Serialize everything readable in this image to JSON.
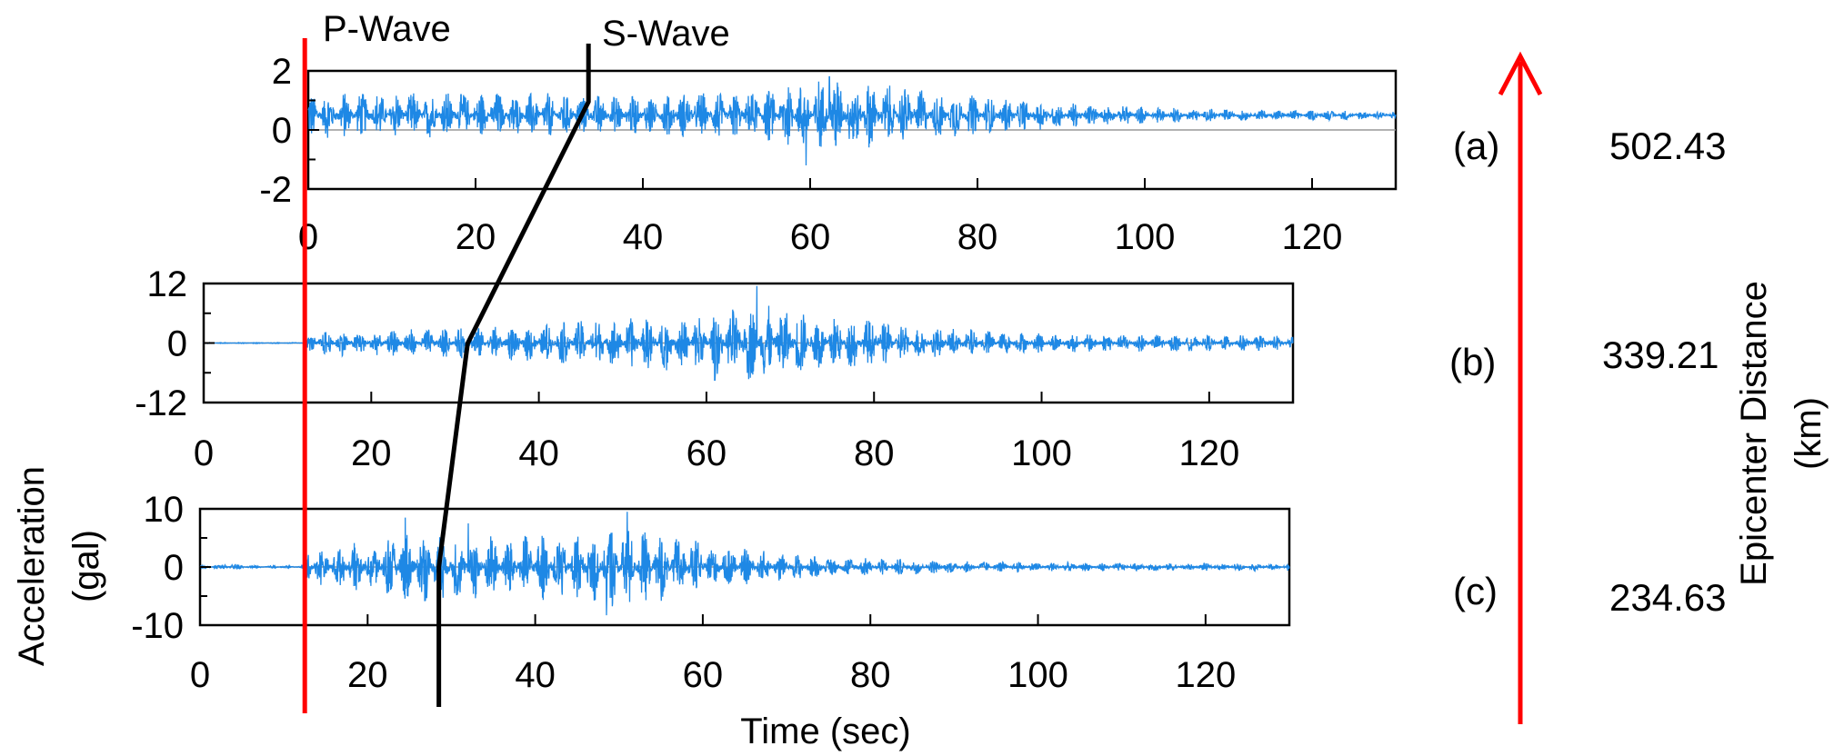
{
  "chart_data": [
    {
      "type": "line",
      "panel_label": "(a)",
      "epicenter_distance": "502.43",
      "xlim": [
        0,
        130
      ],
      "ylim": [
        -2,
        2
      ],
      "xticks": [
        "0",
        "20",
        "40",
        "60",
        "80",
        "100",
        "120"
      ],
      "yticks": [
        "2",
        "0",
        "-2"
      ],
      "xtick_values": [
        0,
        20,
        40,
        60,
        80,
        100,
        120
      ],
      "ytick_values": [
        2,
        0,
        -2
      ],
      "series": [
        {
          "baseline": 0.5,
          "envelope": [
            [
              0,
              0.8
            ],
            [
              20,
              0.8
            ],
            [
              40,
              0.7
            ],
            [
              55,
              0.9
            ],
            [
              62,
              1.4
            ],
            [
              70,
              1.0
            ],
            [
              82,
              0.6
            ],
            [
              95,
              0.35
            ],
            [
              110,
              0.2
            ],
            [
              130,
              0.15
            ]
          ],
          "peaks": [
            [
              59.5,
              -1.2
            ],
            [
              62.3,
              1.8
            ],
            [
              69.5,
              1.5
            ]
          ],
          "color": "#1E88E5"
        }
      ]
    },
    {
      "type": "line",
      "panel_label": "(b)",
      "epicenter_distance": "339.21",
      "xlim": [
        0,
        130
      ],
      "ylim": [
        -12,
        12
      ],
      "xticks": [
        "0",
        "20",
        "40",
        "60",
        "80",
        "100",
        "120"
      ],
      "yticks": [
        "12",
        "0",
        "-12"
      ],
      "xtick_values": [
        0,
        20,
        40,
        60,
        80,
        100,
        120
      ],
      "ytick_values": [
        12,
        0,
        -12
      ],
      "series": [
        {
          "baseline": 0,
          "envelope": [
            [
              0,
              0.1
            ],
            [
              12,
              0.1
            ],
            [
              13,
              2.5
            ],
            [
              30,
              3.0
            ],
            [
              45,
              4.5
            ],
            [
              60,
              6.0
            ],
            [
              66,
              8.0
            ],
            [
              75,
              6.0
            ],
            [
              85,
              3.5
            ],
            [
              100,
              2.0
            ],
            [
              130,
              1.5
            ]
          ],
          "peaks": [
            [
              66,
              11.5
            ],
            [
              61,
              -7.5
            ]
          ],
          "color": "#1E88E5"
        }
      ]
    },
    {
      "type": "line",
      "panel_label": "(c)",
      "epicenter_distance": "234.63",
      "xlim": [
        0,
        130
      ],
      "ylim": [
        -10,
        10
      ],
      "xticks": [
        "0",
        "20",
        "40",
        "60",
        "80",
        "100",
        "120"
      ],
      "yticks": [
        "10",
        "0",
        "-10"
      ],
      "xtick_values": [
        0,
        20,
        40,
        60,
        80,
        100,
        120
      ],
      "ytick_values": [
        10,
        0,
        -10
      ],
      "series": [
        {
          "baseline": 0,
          "envelope": [
            [
              0,
              0.15
            ],
            [
              4,
              0.6
            ],
            [
              6,
              0.2
            ],
            [
              12,
              0.2
            ],
            [
              13,
              3.0
            ],
            [
              20,
              4.5
            ],
            [
              25,
              6.5
            ],
            [
              35,
              5.5
            ],
            [
              45,
              6.0
            ],
            [
              50,
              7.5
            ],
            [
              58,
              5.0
            ],
            [
              66,
              3.0
            ],
            [
              75,
              1.8
            ],
            [
              90,
              1.0
            ],
            [
              110,
              0.7
            ],
            [
              130,
              0.6
            ]
          ],
          "peaks": [
            [
              24.5,
              8.5
            ],
            [
              51,
              9.5
            ],
            [
              48.5,
              -8.3
            ],
            [
              32,
              7.5
            ]
          ],
          "color": "#1E88E5"
        }
      ]
    }
  ],
  "wave_markers": {
    "p_wave": {
      "label": "P-Wave",
      "time": 12.5,
      "color": "#FF0000"
    },
    "s_wave": {
      "label": "S-Wave",
      "times": {
        "a": 33.5,
        "b": 31.5,
        "c": 28.5
      },
      "color": "#000000"
    }
  },
  "labels": {
    "xlabel": "Time (sec)",
    "ylabel_line1": "Acceleration",
    "ylabel_line2": "(gal)",
    "distance_line1": "Epicenter Distance",
    "distance_line2": "(km)"
  },
  "colors": {
    "trace": "#1E88E5",
    "p_wave": "#FF0000",
    "s_wave": "#000000",
    "arrow": "#FF0000"
  }
}
